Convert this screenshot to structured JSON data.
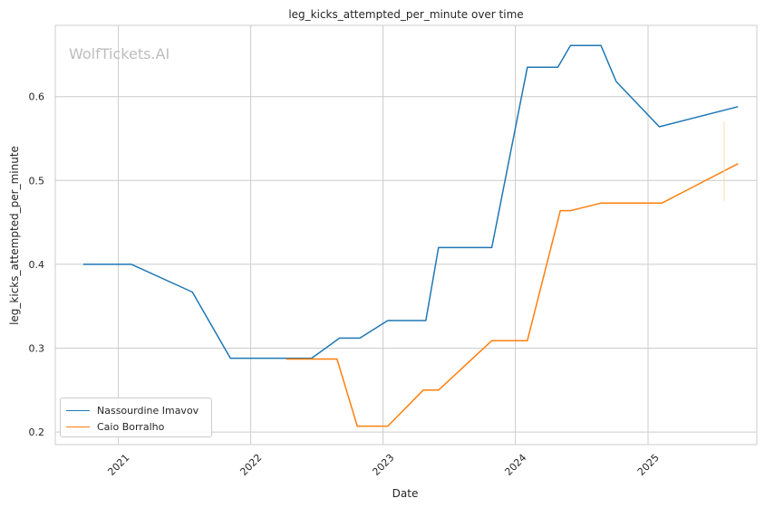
{
  "chart_data": {
    "type": "line",
    "title": "leg_kicks_attempted_per_minute over time",
    "xlabel": "Date",
    "ylabel": "leg_kicks_attempted_per_minute",
    "watermark": "WolfTickets.AI",
    "x_tick_labels": [
      "2021",
      "2022",
      "2023",
      "2024",
      "2025"
    ],
    "x_ticks": [
      "2021-01-01",
      "2022-01-01",
      "2023-01-01",
      "2024-01-01",
      "2025-01-01"
    ],
    "y_tick_labels": [
      "0.2",
      "0.3",
      "0.4",
      "0.5",
      "0.6"
    ],
    "y_ticks": [
      0.2,
      0.3,
      0.4,
      0.5,
      0.6
    ],
    "xlim": [
      "2020-07-11",
      "2025-10-28"
    ],
    "ylim": [
      0.185,
      0.685
    ],
    "grid": true,
    "legend_position": "lower-left",
    "series": [
      {
        "name": "Nassourdine Imavov",
        "color": "#1f77b4",
        "points": [
          [
            "2020-09-26",
            0.4
          ],
          [
            "2021-02-06",
            0.4
          ],
          [
            "2021-07-24",
            0.367
          ],
          [
            "2021-11-06",
            0.288
          ],
          [
            "2022-06-18",
            0.288
          ],
          [
            "2022-09-03",
            0.312
          ],
          [
            "2022-10-29",
            0.312
          ],
          [
            "2023-01-14",
            0.333
          ],
          [
            "2023-04-29",
            0.333
          ],
          [
            "2023-06-03",
            0.42
          ],
          [
            "2023-10-28",
            0.42
          ],
          [
            "2024-02-03",
            0.635
          ],
          [
            "2024-04-27",
            0.635
          ],
          [
            "2024-06-01",
            0.661
          ],
          [
            "2024-08-24",
            0.661
          ],
          [
            "2024-10-05",
            0.618
          ],
          [
            "2025-02-01",
            0.564
          ],
          [
            "2025-09-06",
            0.588
          ]
        ]
      },
      {
        "name": "Caio Borralho",
        "color": "#ff7f0e",
        "points": [
          [
            "2022-04-09",
            0.287
          ],
          [
            "2022-08-27",
            0.287
          ],
          [
            "2022-10-22",
            0.207
          ],
          [
            "2023-01-14",
            0.207
          ],
          [
            "2023-04-22",
            0.25
          ],
          [
            "2023-06-03",
            0.25
          ],
          [
            "2023-10-28",
            0.309
          ],
          [
            "2024-02-03",
            0.309
          ],
          [
            "2024-05-04",
            0.464
          ],
          [
            "2024-06-01",
            0.464
          ],
          [
            "2024-08-24",
            0.473
          ],
          [
            "2025-02-08",
            0.473
          ],
          [
            "2025-09-06",
            0.52
          ]
        ]
      }
    ]
  }
}
